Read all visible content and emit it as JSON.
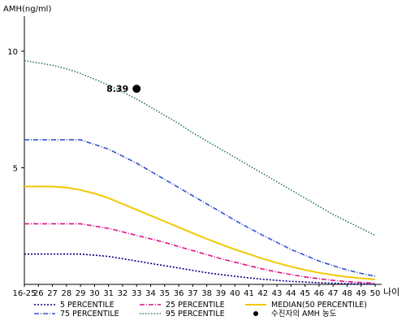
{
  "chart_data": {
    "type": "line",
    "ylabel": "AMH(ng/ml)",
    "xlabel": "나이",
    "categories": [
      "16-25",
      "26",
      "27",
      "28",
      "29",
      "30",
      "31",
      "32",
      "33",
      "34",
      "35",
      "36",
      "37",
      "38",
      "39",
      "40",
      "41",
      "42",
      "43",
      "44",
      "45",
      "46",
      "47",
      "48",
      "49",
      "50"
    ],
    "y_ticks": [
      5,
      10
    ],
    "ylim": [
      0,
      11.5
    ],
    "grid": false,
    "legend_position": "bottom",
    "series": [
      {
        "name": "5 PERCENTILE",
        "color": "#000080",
        "dash": "2,2",
        "values": [
          1.3,
          1.3,
          1.3,
          1.3,
          1.3,
          1.25,
          1.2,
          1.1,
          1.0,
          0.9,
          0.8,
          0.7,
          0.6,
          0.5,
          0.42,
          0.35,
          0.28,
          0.22,
          0.17,
          0.13,
          0.1,
          0.07,
          0.05,
          0.03,
          0.02,
          0.01
        ]
      },
      {
        "name": "75 PERCENTILE",
        "color": "#3355cc",
        "dash": "6,2,1,2",
        "values": [
          6.2,
          6.2,
          6.2,
          6.2,
          6.2,
          6.0,
          5.8,
          5.5,
          5.2,
          4.85,
          4.5,
          4.15,
          3.8,
          3.45,
          3.1,
          2.75,
          2.42,
          2.1,
          1.8,
          1.5,
          1.25,
          1.0,
          0.8,
          0.62,
          0.47,
          0.35
        ]
      },
      {
        "name": "25 PERCENTILE",
        "color": "#dd1188",
        "dash": "6,2,1,2",
        "values": [
          2.6,
          2.6,
          2.6,
          2.6,
          2.6,
          2.5,
          2.4,
          2.25,
          2.1,
          1.95,
          1.8,
          1.62,
          1.45,
          1.28,
          1.1,
          0.95,
          0.8,
          0.66,
          0.53,
          0.42,
          0.32,
          0.24,
          0.17,
          0.12,
          0.08,
          0.05
        ]
      },
      {
        "name": "95 PERCENTILE",
        "color": "#2e7d4f",
        "dash": "1.5,2",
        "values": [
          9.6,
          9.5,
          9.4,
          9.25,
          9.05,
          8.8,
          8.55,
          8.25,
          7.95,
          7.6,
          7.25,
          6.9,
          6.5,
          6.15,
          5.8,
          5.45,
          5.1,
          4.75,
          4.4,
          4.05,
          3.7,
          3.35,
          3.0,
          2.7,
          2.4,
          2.1
        ]
      },
      {
        "name": "MEDIAN(50 PERCENTILE)",
        "color": "#f2c800",
        "dash": "",
        "values": [
          4.2,
          4.2,
          4.2,
          4.15,
          4.05,
          3.9,
          3.7,
          3.45,
          3.2,
          2.95,
          2.7,
          2.45,
          2.2,
          1.95,
          1.72,
          1.5,
          1.3,
          1.1,
          0.92,
          0.76,
          0.62,
          0.5,
          0.4,
          0.32,
          0.26,
          0.21
        ]
      }
    ],
    "legend": [
      {
        "name": "5 PERCENTILE",
        "color": "#000080",
        "dash": "2,2",
        "marker": "line"
      },
      {
        "name": "25 PERCENTILE",
        "color": "#dd1188",
        "dash": "6,2,1,2",
        "marker": "line"
      },
      {
        "name": "MEDIAN(50 PERCENTILE)",
        "color": "#f2c800",
        "dash": "",
        "marker": "line"
      },
      {
        "name": "75 PERCENTILE",
        "color": "#3355cc",
        "dash": "6,2,1,2",
        "marker": "line"
      },
      {
        "name": "95 PERCENTILE",
        "color": "#2e7d4f",
        "dash": "1.5,2",
        "marker": "line"
      },
      {
        "name": "수진자의 AMH 농도",
        "color": "#000000",
        "dash": "",
        "marker": "dot"
      }
    ],
    "point": {
      "label": "8.39",
      "x": "33",
      "y": 8.39,
      "color": "#000000"
    }
  }
}
